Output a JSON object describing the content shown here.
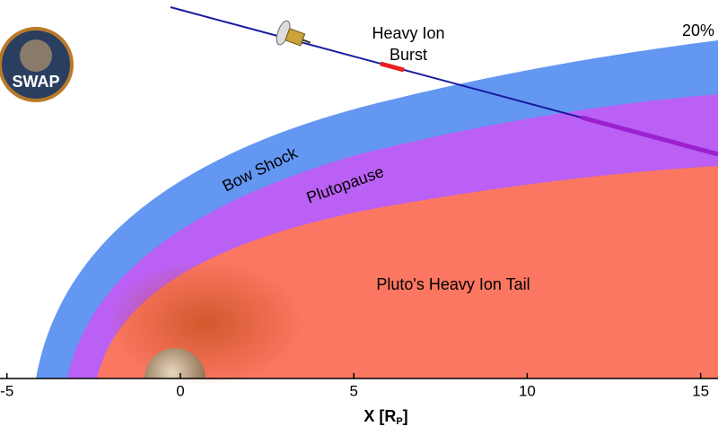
{
  "logo": {
    "label": "SWAP"
  },
  "annotations": {
    "burst_line1": "Heavy Ion",
    "burst_line2": "Burst",
    "percent": "20%",
    "bow_shock": "Bow Shock",
    "plutopause": "Plutopause",
    "tail": "Pluto's Heavy Ion Tail"
  },
  "x_axis": {
    "label": "X [R",
    "label_subscript": "P",
    "label_close": "]",
    "xlim": [
      -5.2,
      15.5
    ],
    "xticks": [
      -5,
      0,
      5,
      10,
      15
    ]
  }
}
